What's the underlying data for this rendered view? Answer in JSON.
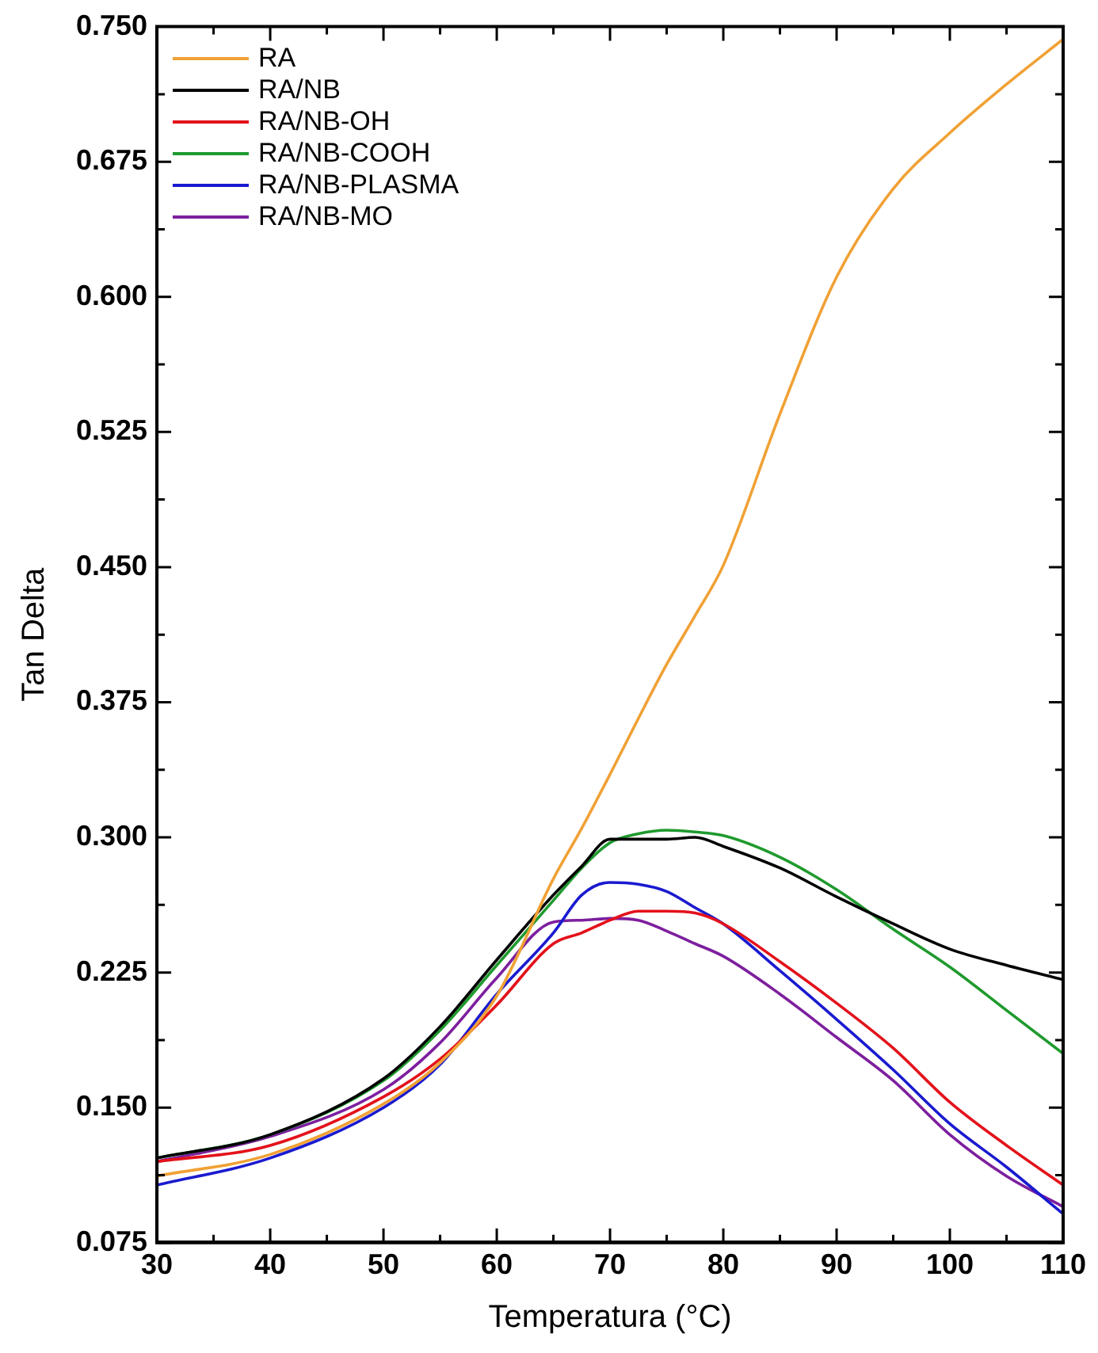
{
  "chart_data": {
    "type": "line",
    "xlabel": "Temperatura (°C)",
    "ylabel": "Tan Delta",
    "x": [
      30,
      40,
      50,
      55,
      60,
      65,
      67.5,
      70,
      72.5,
      75,
      77.5,
      80,
      85,
      90,
      95,
      100,
      105,
      110
    ],
    "series": [
      {
        "name": "RA",
        "color": "#f0a135",
        "values": [
          0.112,
          0.124,
          0.152,
          0.175,
          0.212,
          0.277,
          0.305,
          0.335,
          0.366,
          0.396,
          0.423,
          0.451,
          0.535,
          0.611,
          0.66,
          0.691,
          0.718,
          0.743
        ]
      },
      {
        "name": "RA/NB",
        "color": "#000000",
        "values": [
          0.122,
          0.135,
          0.166,
          0.195,
          0.232,
          0.268,
          0.284,
          0.299,
          0.299,
          0.299,
          0.3,
          0.295,
          0.283,
          0.267,
          0.252,
          0.238,
          0.229,
          0.221
        ]
      },
      {
        "name": "RA/NB-OH",
        "color": "#e3121b",
        "values": [
          0.12,
          0.129,
          0.156,
          0.177,
          0.207,
          0.241,
          0.247,
          0.254,
          0.259,
          0.259,
          0.258,
          0.252,
          0.231,
          0.208,
          0.183,
          0.153,
          0.129,
          0.107
        ]
      },
      {
        "name": "RA/NB-COOH",
        "color": "#1f9a2e",
        "values": [
          0.122,
          0.135,
          0.165,
          0.193,
          0.229,
          0.265,
          0.283,
          0.297,
          0.302,
          0.304,
          0.303,
          0.301,
          0.289,
          0.271,
          0.249,
          0.228,
          0.204,
          0.18
        ]
      },
      {
        "name": "RA/NB-PLASMA",
        "color": "#1a1ad0",
        "values": [
          0.107,
          0.122,
          0.15,
          0.174,
          0.213,
          0.247,
          0.268,
          0.275,
          0.274,
          0.27,
          0.261,
          0.252,
          0.226,
          0.199,
          0.171,
          0.141,
          0.117,
          0.091
        ]
      },
      {
        "name": "RA/NB-MO",
        "color": "#7d1f9e",
        "values": [
          0.12,
          0.134,
          0.16,
          0.186,
          0.222,
          0.253,
          0.254,
          0.255,
          0.254,
          0.248,
          0.241,
          0.234,
          0.213,
          0.189,
          0.165,
          0.135,
          0.112,
          0.095
        ]
      }
    ],
    "xlim": [
      30,
      110
    ],
    "xticks": [
      30,
      {
        "value": 35,
        "label": null
      },
      40,
      {
        "value": 45,
        "label": null
      },
      50,
      {
        "value": 55,
        "label": null
      },
      60,
      {
        "value": 65,
        "label": null
      },
      70,
      {
        "value": 75,
        "label": null
      },
      80,
      {
        "value": 85,
        "label": null
      },
      90,
      {
        "value": 95,
        "label": null
      },
      100,
      {
        "value": 105,
        "label": null
      },
      110
    ],
    "ylim": [
      0.075,
      0.75
    ],
    "yticks": [
      {
        "value": 0.075,
        "label": "0.075"
      },
      {
        "value": 0.1125,
        "label": null
      },
      {
        "value": 0.15,
        "label": "0.150"
      },
      {
        "value": 0.1875,
        "label": null
      },
      {
        "value": 0.225,
        "label": "0.225"
      },
      {
        "value": 0.2625,
        "label": null
      },
      {
        "value": 0.3,
        "label": "0.300"
      },
      {
        "value": 0.3375,
        "label": null
      },
      {
        "value": 0.375,
        "label": "0.375"
      },
      {
        "value": 0.4125,
        "label": null
      },
      {
        "value": 0.45,
        "label": "0.450"
      },
      {
        "value": 0.4875,
        "label": null
      },
      {
        "value": 0.525,
        "label": "0.525"
      },
      {
        "value": 0.5625,
        "label": null
      },
      {
        "value": 0.6,
        "label": "0.600"
      },
      {
        "value": 0.6375,
        "label": null
      },
      {
        "value": 0.675,
        "label": "0.675"
      },
      {
        "value": 0.7125,
        "label": null
      },
      {
        "value": 0.75,
        "label": "0.750"
      }
    ],
    "legend": "top left",
    "grid": false,
    "marker": "none",
    "line_style": "solid"
  }
}
